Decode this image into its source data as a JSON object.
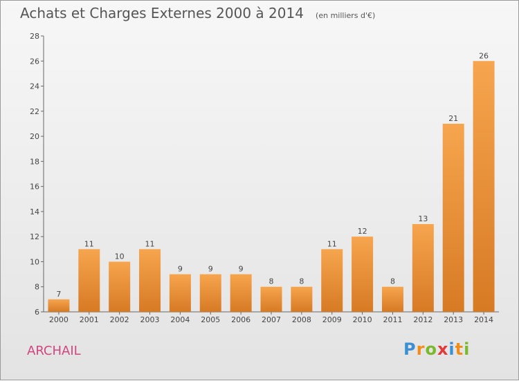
{
  "header": {
    "title": "Achats et Charges Externes 2000 à 2014",
    "subtitle": "(en milliers d'€)"
  },
  "footer": {
    "commune": "ARCHAIL",
    "logo_letters": [
      "P",
      "r",
      "o",
      "x",
      "i",
      "t",
      "i"
    ],
    "logo_colors": [
      "#3b8fd4",
      "#f08c1a",
      "#7ab82c",
      "#e23a3a",
      "#3b8fd4",
      "#f08c1a",
      "#7ab82c"
    ]
  },
  "chart_data": {
    "type": "bar",
    "title": "Achats et Charges Externes 2000 à 2014",
    "categories": [
      "2000",
      "2001",
      "2002",
      "2003",
      "2004",
      "2005",
      "2006",
      "2007",
      "2008",
      "2009",
      "2010",
      "2011",
      "2012",
      "2013",
      "2014"
    ],
    "values": [
      7,
      11,
      10,
      11,
      9,
      9,
      9,
      8,
      8,
      11,
      12,
      8,
      13,
      21,
      26
    ],
    "ylim": [
      6,
      28
    ],
    "yticks": [
      6,
      8,
      10,
      12,
      14,
      16,
      18,
      20,
      22,
      24,
      26,
      28
    ],
    "grid": false,
    "colors": {
      "bar_top": "#f6a54e",
      "bar_bottom": "#d77a24",
      "axis": "#666666"
    }
  }
}
